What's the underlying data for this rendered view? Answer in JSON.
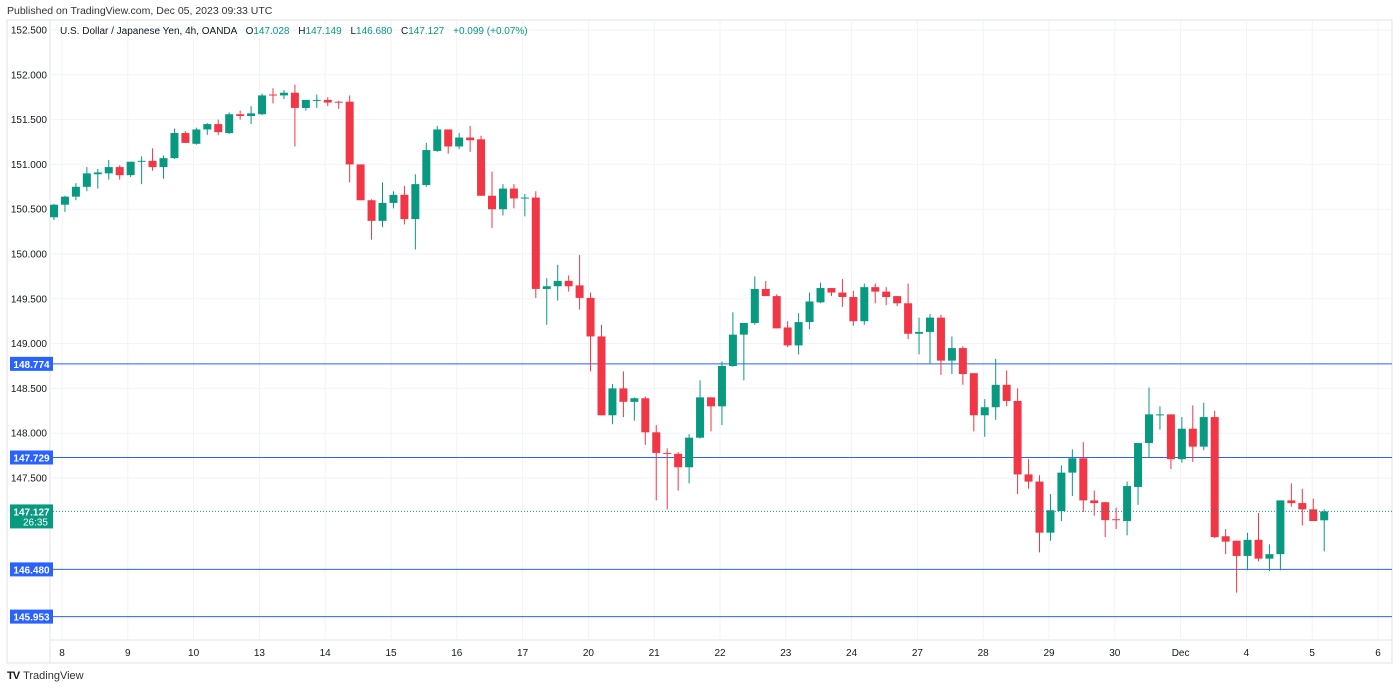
{
  "header": {
    "published": "Published on TradingView.com, Dec 05, 2023 09:33 UTC"
  },
  "legend": {
    "symbol": "U.S. Dollar / Japanese Yen, 4h, OANDA",
    "o_label": "O",
    "o": "147.028",
    "h_label": "H",
    "h": "147.149",
    "l_label": "L",
    "l": "146.680",
    "c_label": "C",
    "c": "147.127",
    "change": "+0.099 (+0.07%)"
  },
  "footer": {
    "brand": "TradingView"
  },
  "colors": {
    "up": "#089981",
    "down": "#f23645",
    "hline": "#2962ff",
    "grid": "#f0f3fa"
  },
  "chart_data": {
    "type": "candlestick",
    "title": "U.S. Dollar / Japanese Yen, 4h, OANDA",
    "ylim": [
      145.75,
      152.5
    ],
    "y_ticks": [
      "152.500",
      "152.000",
      "151.500",
      "151.000",
      "150.500",
      "150.000",
      "149.500",
      "149.000",
      "148.500",
      "148.000",
      "147.500"
    ],
    "x_ticks": [
      "8",
      "9",
      "10",
      "13",
      "14",
      "15",
      "16",
      "17",
      "20",
      "21",
      "22",
      "23",
      "24",
      "27",
      "28",
      "29",
      "30",
      "Dec",
      "4",
      "5",
      "6"
    ],
    "current_price": {
      "label": "147.127",
      "countdown": "26:35",
      "value": 147.127
    },
    "horizontal_lines": [
      {
        "label": "148.774",
        "value": 148.774
      },
      {
        "label": "147.729",
        "value": 147.729
      },
      {
        "label": "146.480",
        "value": 146.48
      },
      {
        "label": "145.953",
        "value": 145.953
      }
    ],
    "ohlc": [
      [
        150.41,
        150.56,
        150.38,
        150.55
      ],
      [
        150.55,
        150.65,
        150.47,
        150.64
      ],
      [
        150.64,
        150.79,
        150.6,
        150.75
      ],
      [
        150.75,
        150.97,
        150.7,
        150.9
      ],
      [
        150.89,
        150.95,
        150.73,
        150.91
      ],
      [
        150.9,
        151.05,
        150.83,
        150.97
      ],
      [
        150.97,
        150.99,
        150.83,
        150.88
      ],
      [
        150.88,
        151.03,
        150.86,
        151.03
      ],
      [
        151.03,
        151.09,
        150.78,
        151.04
      ],
      [
        151.04,
        151.18,
        150.93,
        150.97
      ],
      [
        150.97,
        151.1,
        150.84,
        151.07
      ],
      [
        151.07,
        151.4,
        151.06,
        151.35
      ],
      [
        151.35,
        151.37,
        151.24,
        151.24
      ],
      [
        151.23,
        151.41,
        151.22,
        151.39
      ],
      [
        151.39,
        151.46,
        151.33,
        151.45
      ],
      [
        151.45,
        151.5,
        151.33,
        151.36
      ],
      [
        151.35,
        151.58,
        151.34,
        151.56
      ],
      [
        151.56,
        151.6,
        151.5,
        151.54
      ],
      [
        151.54,
        151.65,
        151.45,
        151.57
      ],
      [
        151.56,
        151.79,
        151.55,
        151.77
      ],
      [
        151.78,
        151.85,
        151.68,
        151.77
      ],
      [
        151.77,
        151.83,
        151.73,
        151.8
      ],
      [
        151.8,
        151.89,
        151.2,
        151.63
      ],
      [
        151.63,
        151.72,
        151.6,
        151.72
      ],
      [
        151.71,
        151.78,
        151.63,
        151.72
      ],
      [
        151.72,
        151.75,
        151.65,
        151.69
      ],
      [
        151.7,
        151.71,
        151.62,
        151.69
      ],
      [
        151.7,
        151.77,
        150.8,
        151.0
      ],
      [
        151.0,
        151.0,
        150.6,
        150.6
      ],
      [
        150.6,
        150.61,
        150.16,
        150.37
      ],
      [
        150.37,
        150.8,
        150.3,
        150.57
      ],
      [
        150.57,
        150.7,
        150.51,
        150.66
      ],
      [
        150.66,
        150.76,
        150.33,
        150.39
      ],
      [
        150.39,
        150.89,
        150.05,
        150.78
      ],
      [
        150.77,
        151.24,
        150.75,
        151.16
      ],
      [
        151.15,
        151.43,
        151.14,
        151.39
      ],
      [
        151.39,
        151.39,
        151.12,
        151.2
      ],
      [
        151.2,
        151.35,
        151.17,
        151.3
      ],
      [
        151.3,
        151.43,
        151.14,
        151.27
      ],
      [
        151.28,
        151.32,
        150.65,
        150.65
      ],
      [
        150.65,
        150.92,
        150.29,
        150.5
      ],
      [
        150.5,
        150.78,
        150.43,
        150.73
      ],
      [
        150.73,
        150.78,
        150.51,
        150.62
      ],
      [
        150.62,
        150.67,
        150.42,
        150.63
      ],
      [
        150.63,
        150.7,
        149.51,
        149.61
      ],
      [
        149.61,
        149.73,
        149.21,
        149.64
      ],
      [
        149.64,
        149.88,
        149.48,
        149.7
      ],
      [
        149.7,
        149.76,
        149.58,
        149.64
      ],
      [
        149.65,
        149.99,
        149.38,
        149.51
      ],
      [
        149.51,
        149.57,
        148.69,
        149.08
      ],
      [
        149.08,
        149.21,
        148.2,
        148.2
      ],
      [
        148.2,
        148.55,
        148.1,
        148.5
      ],
      [
        148.5,
        148.69,
        148.18,
        148.35
      ],
      [
        148.35,
        148.4,
        148.14,
        148.39
      ],
      [
        148.39,
        148.41,
        147.87,
        148.01
      ],
      [
        148.01,
        148.09,
        147.25,
        147.78
      ],
      [
        147.78,
        147.83,
        147.15,
        147.77
      ],
      [
        147.77,
        147.79,
        147.36,
        147.62
      ],
      [
        147.62,
        147.99,
        147.44,
        147.95
      ],
      [
        147.95,
        148.59,
        147.94,
        148.4
      ],
      [
        148.4,
        148.4,
        148.02,
        148.3
      ],
      [
        148.3,
        148.8,
        148.09,
        148.75
      ],
      [
        148.75,
        149.35,
        148.74,
        149.1
      ],
      [
        149.1,
        149.23,
        148.59,
        149.23
      ],
      [
        149.23,
        149.75,
        149.21,
        149.61
      ],
      [
        149.61,
        149.7,
        149.53,
        149.53
      ],
      [
        149.53,
        149.55,
        149.17,
        149.17
      ],
      [
        149.18,
        149.25,
        148.96,
        148.98
      ],
      [
        148.98,
        149.34,
        148.88,
        149.24
      ],
      [
        149.24,
        149.57,
        149.16,
        149.47
      ],
      [
        149.46,
        149.68,
        149.45,
        149.62
      ],
      [
        149.62,
        149.62,
        149.53,
        149.57
      ],
      [
        149.57,
        149.72,
        149.41,
        149.52
      ],
      [
        149.52,
        149.59,
        149.2,
        149.25
      ],
      [
        149.25,
        149.67,
        149.21,
        149.63
      ],
      [
        149.63,
        149.67,
        149.45,
        149.58
      ],
      [
        149.58,
        149.63,
        149.43,
        149.52
      ],
      [
        149.53,
        149.53,
        149.42,
        149.45
      ],
      [
        149.45,
        149.67,
        149.05,
        149.11
      ],
      [
        149.11,
        149.29,
        148.88,
        149.13
      ],
      [
        149.13,
        149.33,
        148.77,
        149.29
      ],
      [
        149.29,
        149.32,
        148.65,
        148.81
      ],
      [
        148.81,
        149.08,
        148.66,
        148.95
      ],
      [
        148.95,
        148.97,
        148.54,
        148.66
      ],
      [
        148.67,
        148.67,
        148.02,
        148.2
      ],
      [
        148.2,
        148.38,
        147.96,
        148.29
      ],
      [
        148.29,
        148.83,
        148.15,
        148.54
      ],
      [
        148.54,
        148.7,
        148.3,
        148.36
      ],
      [
        148.36,
        148.5,
        147.32,
        147.54
      ],
      [
        147.54,
        147.71,
        147.38,
        147.46
      ],
      [
        147.46,
        147.53,
        146.67,
        146.89
      ],
      [
        146.89,
        147.32,
        146.8,
        147.14
      ],
      [
        147.13,
        147.64,
        147.02,
        147.56
      ],
      [
        147.56,
        147.82,
        147.3,
        147.72
      ],
      [
        147.72,
        147.9,
        147.12,
        147.25
      ],
      [
        147.25,
        147.36,
        147.08,
        147.22
      ],
      [
        147.23,
        147.23,
        146.84,
        147.03
      ],
      [
        147.04,
        147.17,
        146.93,
        147.03
      ],
      [
        147.02,
        147.46,
        146.86,
        147.41
      ],
      [
        147.4,
        147.89,
        147.2,
        147.89
      ],
      [
        147.89,
        148.51,
        147.73,
        148.21
      ],
      [
        148.2,
        148.3,
        148.04,
        148.21
      ],
      [
        148.21,
        148.21,
        147.6,
        147.71
      ],
      [
        147.71,
        148.18,
        147.67,
        148.05
      ],
      [
        148.05,
        148.31,
        147.68,
        147.85
      ],
      [
        147.85,
        148.34,
        147.81,
        148.18
      ],
      [
        148.18,
        148.25,
        146.83,
        146.84
      ],
      [
        146.85,
        146.93,
        146.65,
        146.79
      ],
      [
        146.8,
        146.8,
        146.22,
        146.63
      ],
      [
        146.63,
        146.89,
        146.47,
        146.81
      ],
      [
        146.81,
        147.11,
        146.57,
        146.6
      ],
      [
        146.6,
        146.76,
        146.46,
        146.65
      ],
      [
        146.65,
        147.25,
        146.47,
        147.25
      ],
      [
        147.25,
        147.44,
        147.18,
        147.22
      ],
      [
        147.22,
        147.38,
        146.97,
        147.15
      ],
      [
        147.15,
        147.27,
        147.02,
        147.02
      ],
      [
        147.028,
        147.149,
        146.68,
        147.127
      ]
    ]
  }
}
